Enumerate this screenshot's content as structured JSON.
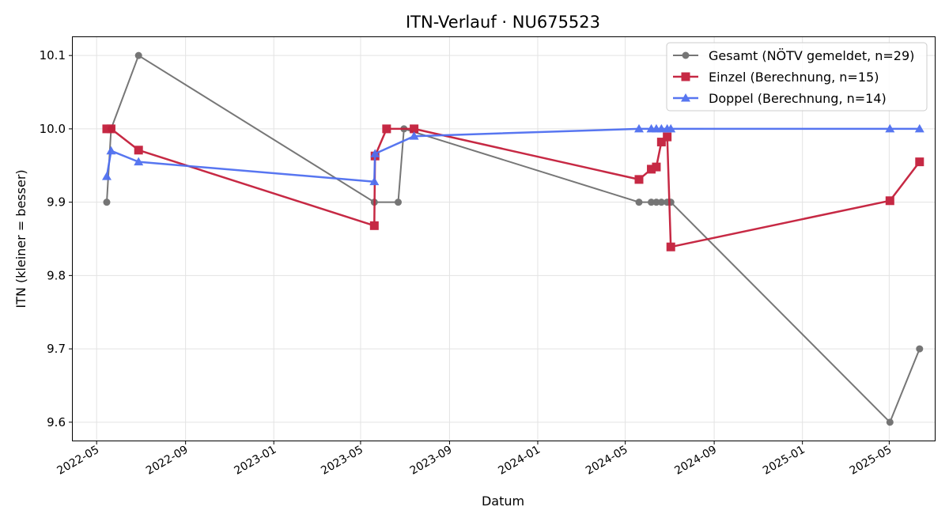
{
  "chart_data": {
    "type": "line",
    "title": "ITN-Verlauf · NU675523",
    "xlabel": "Datum",
    "ylabel": "ITN  (kleiner = besser)",
    "x_type": "date",
    "xlim": [
      "2022-03-29",
      "2025-07-03"
    ],
    "ylim": [
      9.575,
      10.125
    ],
    "x_ticks": [
      "2022-05-01",
      "2022-09-01",
      "2023-01-01",
      "2023-05-01",
      "2023-09-01",
      "2024-01-01",
      "2024-05-01",
      "2024-09-01",
      "2025-01-01",
      "2025-05-01"
    ],
    "x_tick_labels": [
      "2022-05",
      "2022-09",
      "2023-01",
      "2023-05",
      "2023-09",
      "2024-01",
      "2024-05",
      "2024-09",
      "2025-01",
      "2025-05"
    ],
    "y_ticks": [
      9.6,
      9.7,
      9.8,
      9.9,
      10.0,
      10.1
    ],
    "y_tick_labels": [
      "9.6",
      "9.7",
      "9.8",
      "9.9",
      "10.0",
      "10.1"
    ],
    "grid": true,
    "legend_position": "top-right",
    "series": [
      {
        "name": "Gesamt (NÖTV gemeldet, n=29)",
        "color": "#555555",
        "marker": "circle",
        "points": [
          {
            "x": "2022-05-15",
            "y": 9.9
          },
          {
            "x": "2022-05-21",
            "y": 10.0
          },
          {
            "x": "2022-06-28",
            "y": 10.1
          },
          {
            "x": "2023-05-20",
            "y": 9.9
          },
          {
            "x": "2023-06-22",
            "y": 9.9
          },
          {
            "x": "2023-06-30",
            "y": 10.0
          },
          {
            "x": "2024-05-20",
            "y": 9.9
          },
          {
            "x": "2024-06-06",
            "y": 9.9
          },
          {
            "x": "2024-06-13",
            "y": 9.9
          },
          {
            "x": "2024-06-20",
            "y": 9.9
          },
          {
            "x": "2024-06-28",
            "y": 9.9
          },
          {
            "x": "2024-07-03",
            "y": 9.9
          },
          {
            "x": "2025-05-02",
            "y": 9.6
          },
          {
            "x": "2025-06-12",
            "y": 9.7
          }
        ]
      },
      {
        "name": "Einzel (Berechnung, n=15)",
        "color": "#c41e3a",
        "marker": "square",
        "points": [
          {
            "x": "2022-05-15",
            "y": 10.0
          },
          {
            "x": "2022-05-21",
            "y": 10.0
          },
          {
            "x": "2022-06-28",
            "y": 9.971
          },
          {
            "x": "2023-05-20",
            "y": 9.868
          },
          {
            "x": "2023-05-21",
            "y": 9.963
          },
          {
            "x": "2023-06-06",
            "y": 10.0
          },
          {
            "x": "2023-07-14",
            "y": 10.0
          },
          {
            "x": "2024-05-20",
            "y": 9.931
          },
          {
            "x": "2024-06-06",
            "y": 9.945
          },
          {
            "x": "2024-06-13",
            "y": 9.948
          },
          {
            "x": "2024-06-20",
            "y": 9.982
          },
          {
            "x": "2024-06-28",
            "y": 9.989
          },
          {
            "x": "2024-07-03",
            "y": 9.839
          },
          {
            "x": "2025-05-02",
            "y": 9.902
          },
          {
            "x": "2025-06-12",
            "y": 9.955
          }
        ]
      },
      {
        "name": "Doppel (Berechnung, n=14)",
        "color": "#4f6ff0",
        "marker": "triangle",
        "points": [
          {
            "x": "2022-05-15",
            "y": 9.935
          },
          {
            "x": "2022-05-21",
            "y": 9.97
          },
          {
            "x": "2022-06-28",
            "y": 9.955
          },
          {
            "x": "2023-05-20",
            "y": 9.928
          },
          {
            "x": "2023-05-21",
            "y": 9.966
          },
          {
            "x": "2023-07-14",
            "y": 9.99
          },
          {
            "x": "2024-05-20",
            "y": 10.0
          },
          {
            "x": "2024-06-06",
            "y": 10.0
          },
          {
            "x": "2024-06-13",
            "y": 10.0
          },
          {
            "x": "2024-06-20",
            "y": 10.0
          },
          {
            "x": "2024-06-28",
            "y": 10.0
          },
          {
            "x": "2024-07-03",
            "y": 10.0
          },
          {
            "x": "2025-05-02",
            "y": 10.0
          },
          {
            "x": "2025-06-12",
            "y": 10.0
          }
        ]
      }
    ]
  }
}
